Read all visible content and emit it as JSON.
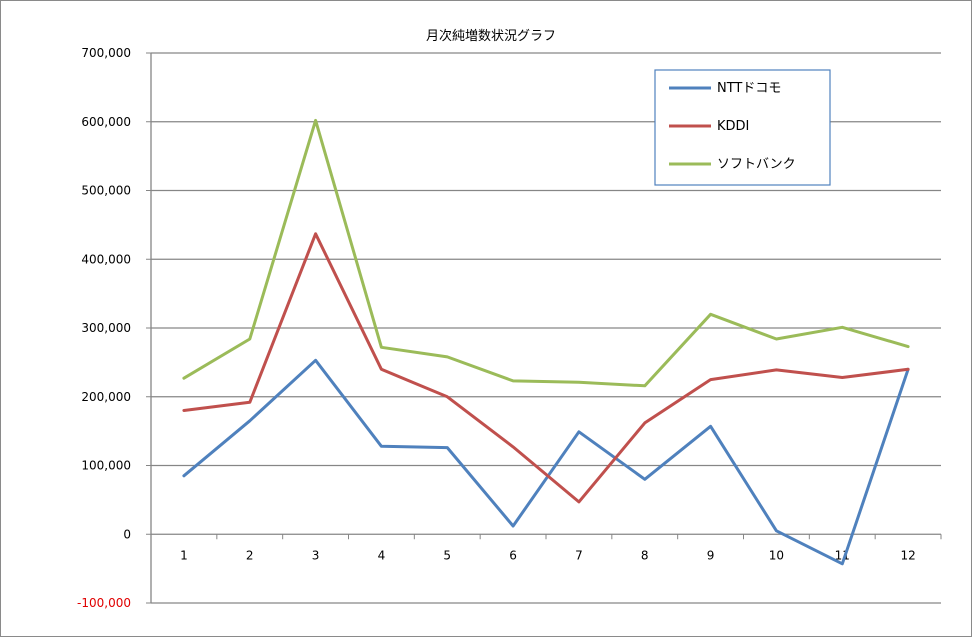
{
  "chart_data": {
    "type": "line",
    "title": "月次純増数状況グラフ",
    "xlabel": "",
    "ylabel": "",
    "categories": [
      "1",
      "2",
      "3",
      "4",
      "5",
      "6",
      "7",
      "8",
      "9",
      "10",
      "11",
      "12"
    ],
    "ylim": [
      -100000,
      700000
    ],
    "yticks": [
      700000,
      600000,
      500000,
      400000,
      300000,
      200000,
      100000,
      0,
      -100000
    ],
    "ytick_labels": [
      "700,000",
      "600,000",
      "500,000",
      "400,000",
      "300,000",
      "200,000",
      "100,000",
      "0",
      "-100,000"
    ],
    "grid": true,
    "legend_position": "top-right",
    "series": [
      {
        "name": "NTTドコモ",
        "color": "#4f81bd",
        "values": [
          85000,
          165000,
          253000,
          128000,
          126000,
          12000,
          149000,
          80000,
          157000,
          5000,
          -43000,
          240000
        ]
      },
      {
        "name": "KDDI",
        "color": "#c0504d",
        "values": [
          180000,
          192000,
          437000,
          240000,
          200000,
          127000,
          47000,
          162000,
          225000,
          239000,
          228000,
          240000
        ]
      },
      {
        "name": "ソフトバンク",
        "color": "#9bbb59",
        "values": [
          227000,
          284000,
          602000,
          272000,
          258000,
          223000,
          221000,
          216000,
          320000,
          284000,
          301000,
          273000
        ]
      }
    ]
  }
}
